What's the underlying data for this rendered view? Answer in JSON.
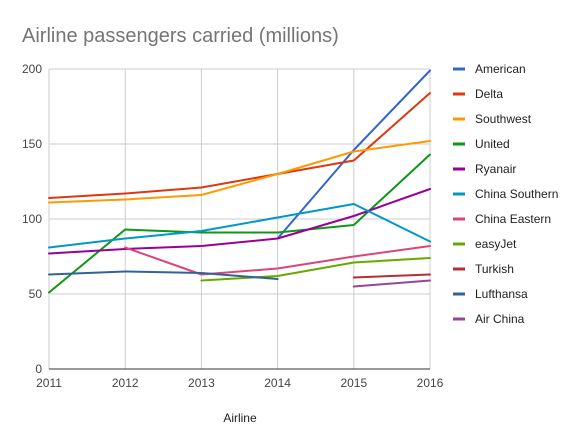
{
  "chart_data": {
    "type": "line",
    "title": "Airline passengers carried (millions)",
    "xlabel": "Airline",
    "ylabel": "",
    "x": [
      2011,
      2012,
      2013,
      2014,
      2015,
      2016
    ],
    "x_tick_labels": [
      "2011",
      "2012",
      "2013",
      "2014",
      "2015",
      "2016"
    ],
    "ylim": [
      0,
      200
    ],
    "y_ticks": [
      0,
      50,
      100,
      150,
      200
    ],
    "y_tick_labels": [
      "0",
      "50",
      "100",
      "150",
      "200"
    ],
    "grid": true,
    "legend_position": "right",
    "series": [
      {
        "name": "American",
        "color": "#3366cc",
        "values": [
          null,
          null,
          null,
          87,
          146,
          199
        ]
      },
      {
        "name": "Delta",
        "color": "#dc3912",
        "values": [
          114,
          117,
          121,
          130,
          139,
          184
        ]
      },
      {
        "name": "Southwest",
        "color": "#ff9900",
        "values": [
          111,
          113,
          116,
          130,
          145,
          152
        ]
      },
      {
        "name": "United",
        "color": "#109618",
        "values": [
          51,
          93,
          91,
          91,
          96,
          143
        ]
      },
      {
        "name": "Ryanair",
        "color": "#990099",
        "values": [
          77,
          80,
          82,
          87,
          102,
          120
        ]
      },
      {
        "name": "China Southern",
        "color": "#0099c6",
        "values": [
          81,
          87,
          92,
          101,
          110,
          85
        ]
      },
      {
        "name": "China Eastern",
        "color": "#dd4477",
        "values": [
          null,
          81,
          63,
          67,
          75,
          82
        ]
      },
      {
        "name": "easyJet",
        "color": "#66aa00",
        "values": [
          null,
          null,
          59,
          62,
          71,
          74
        ]
      },
      {
        "name": "Turkish",
        "color": "#b82e2e",
        "values": [
          null,
          null,
          null,
          null,
          61,
          63
        ]
      },
      {
        "name": "Lufthansa",
        "color": "#316395",
        "values": [
          63,
          65,
          64,
          60,
          null,
          null
        ]
      },
      {
        "name": "Air China",
        "color": "#994499",
        "values": [
          null,
          null,
          null,
          null,
          55,
          59
        ]
      }
    ]
  }
}
